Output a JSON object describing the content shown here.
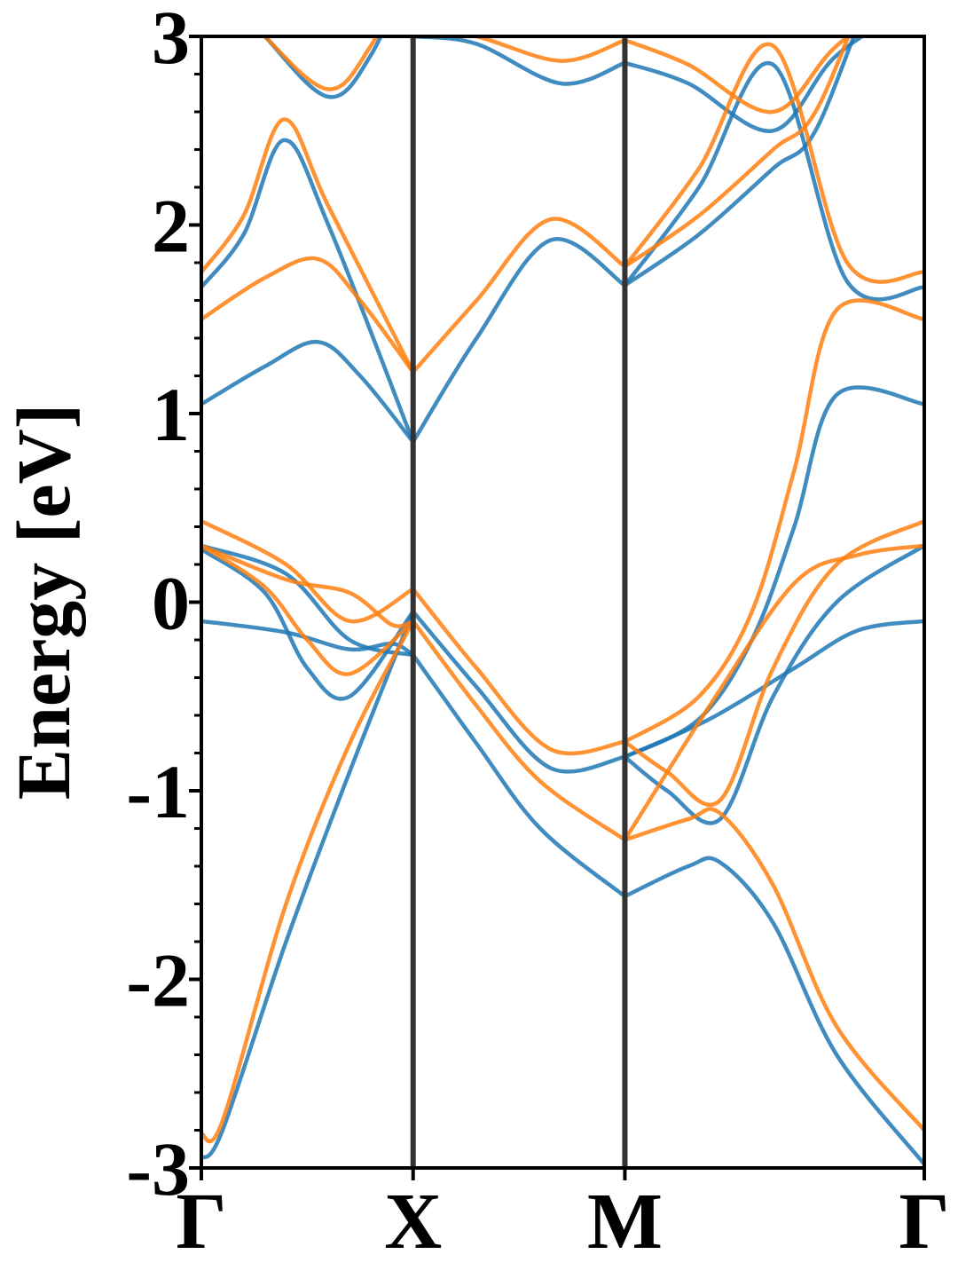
{
  "chart_data": {
    "type": "line",
    "title": "",
    "xlabel": "",
    "ylabel": "Energy [eV]",
    "ylim": [
      -3,
      3
    ],
    "y_ticks": [
      "-3",
      "-2",
      "-1",
      "0",
      "1",
      "2",
      "3"
    ],
    "y_minor_step": 0.2,
    "k_points": [
      {
        "label": "Γ",
        "x": 0.0
      },
      {
        "label": "X",
        "x": 1.0
      },
      {
        "label": "M",
        "x": 2.0
      },
      {
        "label": "Γ",
        "x": 3.414
      }
    ],
    "grid": false,
    "legend": "none",
    "series_colors": [
      "#1f77b4",
      "#ff7f0e"
    ],
    "series": [
      {
        "color": "#1f77b4",
        "bands": [
          {
            "x": [
              0,
              0.3,
              0.6,
              0.8,
              1.0
            ],
            "y": [
              3.4,
              3.0,
              2.68,
              2.9,
              3.4
            ]
          },
          {
            "x": [
              0,
              0.2,
              0.39,
              0.6,
              1.0
            ],
            "y": [
              1.67,
              1.95,
              2.45,
              2.0,
              0.85
            ]
          },
          {
            "x": [
              0,
              0.3,
              0.55,
              0.75,
              1.0
            ],
            "y": [
              1.05,
              1.25,
              1.38,
              1.2,
              0.85
            ]
          },
          {
            "x": [
              0,
              0.4,
              0.7,
              1.0
            ],
            "y": [
              0.3,
              0.15,
              -0.2,
              -0.28
            ]
          },
          {
            "x": [
              0,
              0.4,
              0.7,
              0.9,
              1.0
            ],
            "y": [
              -0.1,
              -0.16,
              -0.25,
              -0.22,
              -0.28
            ]
          },
          {
            "x": [
              0,
              0.1,
              0.4,
              0.7,
              1.0
            ],
            "y": [
              -2.95,
              -2.8,
              -1.8,
              -0.9,
              -0.05
            ]
          },
          {
            "x": [
              0,
              0.3,
              0.5,
              0.7,
              1.0
            ],
            "y": [
              0.28,
              0.05,
              -0.35,
              -0.5,
              -0.05
            ]
          },
          {
            "x": [
              1.0,
              1.3,
              1.65,
              2.0
            ],
            "y": [
              0.85,
              1.4,
              1.92,
              1.68
            ]
          },
          {
            "x": [
              1.0,
              1.3,
              1.65,
              2.0
            ],
            "y": [
              -0.05,
              -0.45,
              -0.88,
              -0.82
            ]
          },
          {
            "x": [
              1.0,
              1.3,
              1.6,
              2.0
            ],
            "y": [
              -0.28,
              -0.75,
              -1.2,
              -1.56
            ]
          },
          {
            "x": [
              1.0,
              1.3,
              1.7,
              2.0
            ],
            "y": [
              3.0,
              2.96,
              2.75,
              2.86
            ]
          },
          {
            "x": [
              2.0,
              2.35,
              2.7,
              3.05,
              3.414
            ],
            "y": [
              1.68,
              2.2,
              2.85,
              1.7,
              1.67
            ]
          },
          {
            "x": [
              2.0,
              2.35,
              2.7,
              2.9,
              3.2,
              3.414
            ],
            "y": [
              1.68,
              1.95,
              2.3,
              2.5,
              3.3,
              3.4
            ]
          },
          {
            "x": [
              2.0,
              2.35,
              2.6,
              2.8,
              3.0,
              3.414
            ],
            "y": [
              -0.82,
              -0.62,
              -0.2,
              0.4,
              1.1,
              1.05
            ]
          },
          {
            "x": [
              2.0,
              2.3,
              2.45,
              2.7,
              3.0,
              3.414
            ],
            "y": [
              -1.56,
              -1.4,
              -1.38,
              -1.7,
              -2.4,
              -2.98
            ]
          },
          {
            "x": [
              2.0,
              2.2,
              2.45,
              2.7,
              3.0,
              3.414
            ],
            "y": [
              -0.82,
              -1.0,
              -1.15,
              -0.5,
              0.0,
              0.3
            ]
          },
          {
            "x": [
              2.0,
              2.4,
              2.8,
              3.1,
              3.414
            ],
            "y": [
              -0.82,
              -0.62,
              -0.35,
              -0.15,
              -0.1
            ]
          },
          {
            "x": [
              2.0,
              2.3,
              2.7,
              3.0,
              3.414
            ],
            "y": [
              2.86,
              2.75,
              2.5,
              2.9,
              3.2
            ]
          }
        ]
      },
      {
        "color": "#ff7f0e",
        "bands": [
          {
            "x": [
              0,
              0.3,
              0.6,
              0.8,
              1.0
            ],
            "y": [
              3.4,
              3.0,
              2.72,
              2.95,
              3.4
            ]
          },
          {
            "x": [
              0,
              0.2,
              0.39,
              0.6,
              1.0
            ],
            "y": [
              1.75,
              2.05,
              2.56,
              2.1,
              1.22
            ]
          },
          {
            "x": [
              0,
              0.3,
              0.55,
              0.75,
              1.0
            ],
            "y": [
              1.5,
              1.72,
              1.82,
              1.6,
              1.22
            ]
          },
          {
            "x": [
              0,
              0.4,
              0.7,
              1.0
            ],
            "y": [
              0.43,
              0.2,
              -0.1,
              0.07
            ]
          },
          {
            "x": [
              0,
              0.4,
              0.7,
              0.9,
              1.0
            ],
            "y": [
              0.3,
              0.12,
              0.05,
              -0.12,
              -0.1
            ]
          },
          {
            "x": [
              0,
              0.1,
              0.4,
              0.7,
              1.0
            ],
            "y": [
              -2.82,
              -2.75,
              -1.6,
              -0.75,
              -0.1
            ]
          },
          {
            "x": [
              0,
              0.3,
              0.5,
              0.7,
              1.0
            ],
            "y": [
              0.3,
              0.08,
              -0.2,
              -0.38,
              -0.1
            ]
          },
          {
            "x": [
              1.0,
              1.3,
              1.65,
              2.0
            ],
            "y": [
              1.22,
              1.6,
              2.03,
              1.78
            ]
          },
          {
            "x": [
              1.0,
              1.3,
              1.65,
              2.0
            ],
            "y": [
              0.07,
              -0.35,
              -0.78,
              -0.74
            ]
          },
          {
            "x": [
              1.0,
              1.3,
              1.6,
              2.0
            ],
            "y": [
              -0.1,
              -0.55,
              -0.95,
              -1.26
            ]
          },
          {
            "x": [
              1.0,
              1.3,
              1.7,
              2.0
            ],
            "y": [
              3.05,
              3.0,
              2.87,
              2.98
            ]
          },
          {
            "x": [
              2.0,
              2.35,
              2.7,
              3.05,
              3.414
            ],
            "y": [
              1.78,
              2.3,
              2.95,
              1.8,
              1.75
            ]
          },
          {
            "x": [
              2.0,
              2.35,
              2.7,
              2.9,
              3.2,
              3.414
            ],
            "y": [
              1.78,
              2.05,
              2.4,
              2.6,
              3.35,
              3.45
            ]
          },
          {
            "x": [
              2.0,
              2.35,
              2.6,
              2.8,
              3.0,
              3.414
            ],
            "y": [
              -0.74,
              -0.5,
              -0.05,
              0.7,
              1.55,
              1.5
            ]
          },
          {
            "x": [
              2.0,
              2.3,
              2.45,
              2.7,
              3.0,
              3.414
            ],
            "y": [
              -1.26,
              -1.15,
              -1.12,
              -1.5,
              -2.25,
              -2.8
            ]
          },
          {
            "x": [
              2.0,
              2.2,
              2.45,
              2.7,
              3.0,
              3.414
            ],
            "y": [
              -0.74,
              -0.9,
              -1.05,
              -0.35,
              0.2,
              0.43
            ]
          },
          {
            "x": [
              2.0,
              2.4,
              2.8,
              3.1,
              3.414
            ],
            "y": [
              -1.26,
              -0.55,
              0.1,
              0.25,
              0.3
            ]
          },
          {
            "x": [
              2.0,
              2.3,
              2.7,
              3.0,
              3.414
            ],
            "y": [
              2.98,
              2.85,
              2.6,
              2.95,
              3.3
            ]
          }
        ]
      }
    ]
  }
}
